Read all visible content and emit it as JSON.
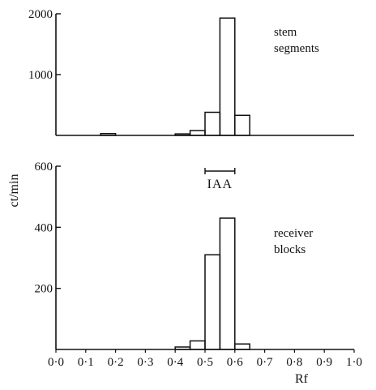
{
  "chart_data": [
    {
      "type": "histogram",
      "panel": "top",
      "annotation": [
        "stem",
        "segments"
      ],
      "y_tick_labels": [
        "2000",
        "1000"
      ],
      "y_ticks": [
        2000,
        1000
      ],
      "ylim": [
        0,
        2000
      ],
      "xlim": [
        0.0,
        1.0
      ],
      "bins": [
        {
          "x0": 0.15,
          "x1": 0.2,
          "value": 30
        },
        {
          "x0": 0.4,
          "x1": 0.45,
          "value": 25
        },
        {
          "x0": 0.45,
          "x1": 0.5,
          "value": 80
        },
        {
          "x0": 0.5,
          "x1": 0.55,
          "value": 380
        },
        {
          "x0": 0.55,
          "x1": 0.6,
          "value": 1930
        },
        {
          "x0": 0.6,
          "x1": 0.65,
          "value": 330
        }
      ]
    },
    {
      "type": "histogram",
      "panel": "bottom",
      "annotation": [
        "receiver",
        "blocks"
      ],
      "y_tick_labels": [
        "600",
        "400",
        "200"
      ],
      "y_ticks": [
        600,
        400,
        200
      ],
      "ylim": [
        0,
        600
      ],
      "xlim": [
        0.0,
        1.0
      ],
      "bins": [
        {
          "x0": 0.4,
          "x1": 0.45,
          "value": 8
        },
        {
          "x0": 0.45,
          "x1": 0.5,
          "value": 28
        },
        {
          "x0": 0.5,
          "x1": 0.55,
          "value": 310
        },
        {
          "x0": 0.55,
          "x1": 0.6,
          "value": 430
        },
        {
          "x0": 0.6,
          "x1": 0.65,
          "value": 18
        }
      ]
    }
  ],
  "y_axis_title": "ct/min",
  "x_axis_title": "Rf",
  "x_tick_labels": [
    "0·0",
    "0·1",
    "0·2",
    "0·3",
    "0·4",
    "0·5",
    "0·6",
    "0·7",
    "0·8",
    "0·9",
    "1·0"
  ],
  "x_ticks": [
    0.0,
    0.1,
    0.2,
    0.3,
    0.4,
    0.5,
    0.6,
    0.7,
    0.8,
    0.9,
    1.0
  ],
  "marker": {
    "label": "IAA",
    "x_range": [
      0.5,
      0.6
    ]
  }
}
